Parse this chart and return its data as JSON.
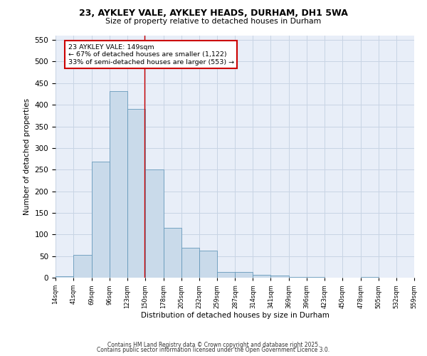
{
  "title1": "23, AYKLEY VALE, AYKLEY HEADS, DURHAM, DH1 5WA",
  "title2": "Size of property relative to detached houses in Durham",
  "xlabel": "Distribution of detached houses by size in Durham",
  "ylabel": "Number of detached properties",
  "bin_edges": [
    14,
    41,
    69,
    96,
    123,
    150,
    178,
    205,
    232,
    259,
    287,
    314,
    341,
    369,
    396,
    423,
    450,
    478,
    505,
    532,
    559
  ],
  "bin_counts": [
    3,
    52,
    268,
    432,
    390,
    250,
    116,
    70,
    62,
    13,
    13,
    6,
    5,
    1,
    1,
    0,
    0,
    1,
    0,
    0
  ],
  "bar_color": "#c9daea",
  "bar_edgecolor": "#6699bb",
  "vline_x": 149,
  "vline_color": "#cc0000",
  "annotation_line1": "23 AYKLEY VALE: 149sqm",
  "annotation_line2": "← 67% of detached houses are smaller (1,122)",
  "annotation_line3": "33% of semi-detached houses are larger (553) →",
  "annotation_box_color": "#cc0000",
  "ylim": [
    0,
    560
  ],
  "yticks": [
    0,
    50,
    100,
    150,
    200,
    250,
    300,
    350,
    400,
    450,
    500,
    550
  ],
  "grid_color": "#c8d4e4",
  "background_color": "#e8eef8",
  "footer1": "Contains HM Land Registry data © Crown copyright and database right 2025.",
  "footer2": "Contains public sector information licensed under the Open Government Licence 3.0."
}
